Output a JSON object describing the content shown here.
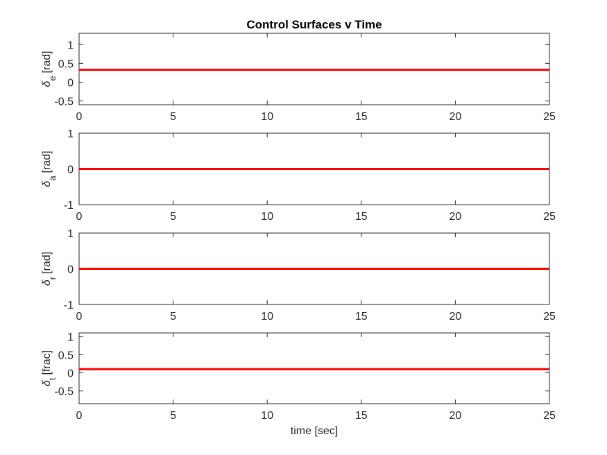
{
  "figure_title": "Control Surfaces v Time",
  "colors": {
    "line": "#ff0000",
    "axis": "#262626",
    "background": "#ffffff"
  },
  "chart_data": [
    {
      "type": "line",
      "ylabel_symbol": "δ",
      "ylabel_sub": "e",
      "ylabel_unit": "[rad]",
      "xlabel": "",
      "xlim": [
        0,
        25
      ],
      "ylim": [
        -0.6,
        1.3
      ],
      "xticks": [
        0,
        5,
        10,
        15,
        20,
        25
      ],
      "yticks": [
        -0.5,
        0,
        0.5,
        1
      ],
      "ytick_labels": [
        "-0.5",
        "0",
        "0.5",
        "1"
      ],
      "grid": false,
      "series": [
        {
          "x": [
            0,
            25
          ],
          "y": [
            0.33,
            0.33
          ]
        }
      ]
    },
    {
      "type": "line",
      "ylabel_symbol": "δ",
      "ylabel_sub": "a",
      "ylabel_unit": "[rad]",
      "xlabel": "",
      "xlim": [
        0,
        25
      ],
      "ylim": [
        -1,
        1
      ],
      "xticks": [
        0,
        5,
        10,
        15,
        20,
        25
      ],
      "yticks": [
        -1,
        0,
        1
      ],
      "ytick_labels": [
        "-1",
        "0",
        "1"
      ],
      "grid": false,
      "series": [
        {
          "x": [
            0,
            25
          ],
          "y": [
            0,
            0
          ]
        }
      ]
    },
    {
      "type": "line",
      "ylabel_symbol": "δ",
      "ylabel_sub": "r",
      "ylabel_unit": "[rad]",
      "xlabel": "",
      "xlim": [
        0,
        25
      ],
      "ylim": [
        -1,
        1
      ],
      "xticks": [
        0,
        5,
        10,
        15,
        20,
        25
      ],
      "yticks": [
        -1,
        0,
        1
      ],
      "ytick_labels": [
        "-1",
        "0",
        "1"
      ],
      "grid": false,
      "series": [
        {
          "x": [
            0,
            25
          ],
          "y": [
            0,
            0
          ]
        }
      ]
    },
    {
      "type": "line",
      "ylabel_symbol": "δ",
      "ylabel_sub": "t",
      "ylabel_unit": "[frac]",
      "xlabel": "time [sec]",
      "xlim": [
        0,
        25
      ],
      "ylim": [
        -0.85,
        1.1
      ],
      "xticks": [
        0,
        5,
        10,
        15,
        20,
        25
      ],
      "yticks": [
        -0.5,
        0,
        0.5,
        1
      ],
      "ytick_labels": [
        "-0.5",
        "0",
        "0.5",
        "1"
      ],
      "grid": false,
      "series": [
        {
          "x": [
            0,
            25
          ],
          "y": [
            0.1,
            0.1
          ]
        }
      ]
    }
  ]
}
